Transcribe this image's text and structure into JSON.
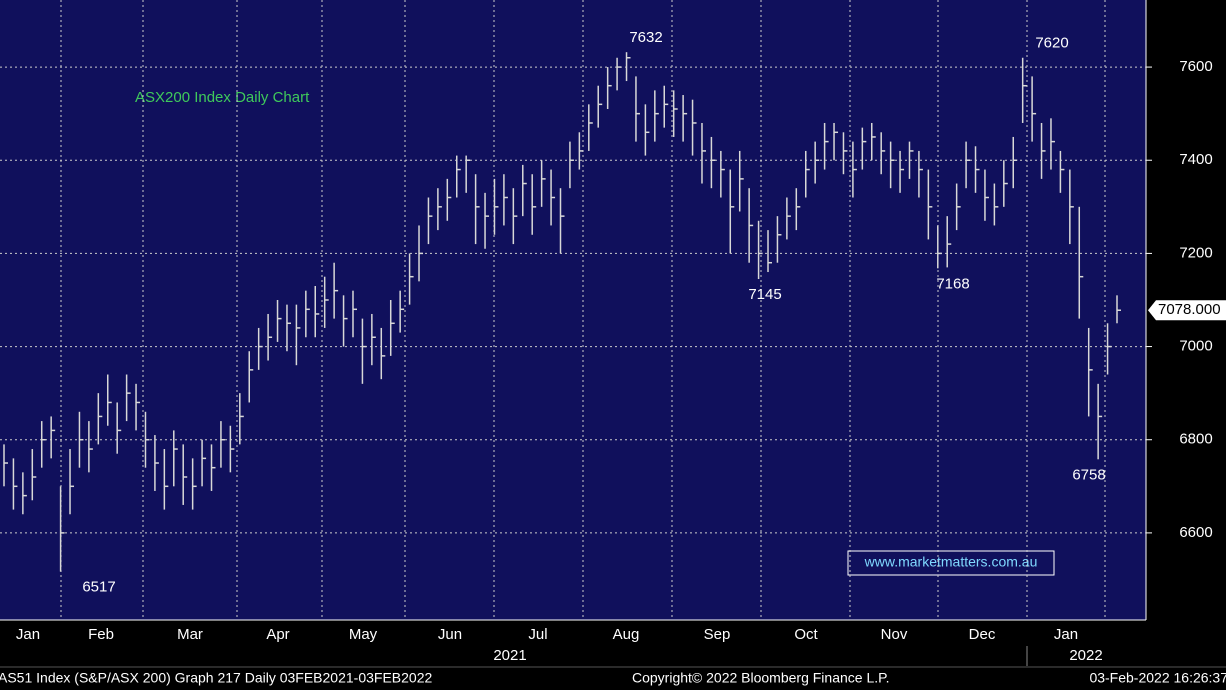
{
  "chart_data": {
    "type": "ohlc",
    "title": "ASX200 Index Daily Chart",
    "watermark": "www.marketmatters.com.au",
    "close": [
      6750,
      6700,
      6680,
      6720,
      6800,
      6820,
      6600,
      6700,
      6800,
      6780,
      6850,
      6880,
      6820,
      6900,
      6880,
      6800,
      6750,
      6700,
      6780,
      6720,
      6700,
      6760,
      6740,
      6800,
      6780,
      6850,
      6950,
      7000,
      7020,
      7060,
      7050,
      7040,
      7080,
      7070,
      7100,
      7120,
      7060,
      7080,
      7000,
      7020,
      6980,
      7050,
      7080,
      7150,
      7200,
      7280,
      7300,
      7320,
      7380,
      7400,
      7300,
      7280,
      7300,
      7320,
      7280,
      7350,
      7300,
      7360,
      7320,
      7280,
      7400,
      7420,
      7480,
      7520,
      7560,
      7600,
      7620,
      7500,
      7460,
      7500,
      7520,
      7510,
      7500,
      7480,
      7420,
      7400,
      7380,
      7300,
      7360,
      7260,
      7200,
      7180,
      7240,
      7280,
      7300,
      7380,
      7400,
      7440,
      7460,
      7420,
      7380,
      7440,
      7450,
      7420,
      7400,
      7380,
      7420,
      7380,
      7300,
      7200,
      7220,
      7300,
      7400,
      7380,
      7320,
      7300,
      7350,
      7400,
      7560,
      7500,
      7420,
      7440,
      7380,
      7300,
      7150,
      6950,
      6850,
      7000,
      7078
    ],
    "high": [
      6790,
      6760,
      6730,
      6780,
      6840,
      6850,
      6700,
      6780,
      6860,
      6840,
      6900,
      6940,
      6880,
      6940,
      6920,
      6860,
      6810,
      6780,
      6820,
      6790,
      6760,
      6800,
      6790,
      6840,
      6830,
      6900,
      6990,
      7040,
      7070,
      7100,
      7090,
      7090,
      7120,
      7130,
      7150,
      7180,
      7110,
      7120,
      7060,
      7070,
      7040,
      7100,
      7120,
      7200,
      7260,
      7320,
      7340,
      7360,
      7410,
      7410,
      7370,
      7330,
      7360,
      7370,
      7340,
      7390,
      7370,
      7400,
      7380,
      7340,
      7440,
      7460,
      7520,
      7560,
      7600,
      7620,
      7632,
      7580,
      7520,
      7550,
      7560,
      7550,
      7540,
      7530,
      7480,
      7450,
      7420,
      7380,
      7420,
      7340,
      7270,
      7250,
      7280,
      7320,
      7340,
      7420,
      7440,
      7480,
      7480,
      7460,
      7440,
      7470,
      7480,
      7460,
      7440,
      7420,
      7440,
      7420,
      7380,
      7260,
      7280,
      7350,
      7440,
      7430,
      7380,
      7350,
      7400,
      7450,
      7620,
      7580,
      7480,
      7490,
      7420,
      7380,
      7300,
      7040,
      6920,
      7050,
      7110
    ],
    "low": [
      6700,
      6650,
      6640,
      6670,
      6740,
      6760,
      6517,
      6640,
      6740,
      6730,
      6790,
      6830,
      6770,
      6840,
      6820,
      6740,
      6690,
      6650,
      6700,
      6660,
      6650,
      6700,
      6690,
      6740,
      6730,
      6790,
      6880,
      6950,
      6970,
      7010,
      6990,
      6960,
      7020,
      7020,
      7040,
      7060,
      7000,
      7020,
      6920,
      6960,
      6930,
      6980,
      7030,
      7090,
      7140,
      7220,
      7250,
      7270,
      7320,
      7330,
      7220,
      7210,
      7240,
      7260,
      7220,
      7280,
      7240,
      7300,
      7260,
      7200,
      7340,
      7380,
      7420,
      7470,
      7510,
      7550,
      7570,
      7440,
      7410,
      7440,
      7470,
      7450,
      7440,
      7410,
      7350,
      7340,
      7320,
      7200,
      7290,
      7180,
      7145,
      7160,
      7180,
      7230,
      7250,
      7320,
      7350,
      7380,
      7400,
      7370,
      7320,
      7380,
      7400,
      7370,
      7340,
      7330,
      7360,
      7320,
      7230,
      7168,
      7170,
      7250,
      7340,
      7330,
      7270,
      7260,
      7300,
      7340,
      7480,
      7440,
      7360,
      7380,
      7330,
      7220,
      7060,
      6850,
      6758,
      6940,
      7050
    ],
    "annotations": [
      7632,
      7145,
      7168,
      7620,
      6758,
      6517
    ],
    "last_price": {
      "value": 7078,
      "label": "7078.000"
    },
    "ylim": [
      6413,
      7744
    ],
    "yticks": [
      6600,
      6800,
      7000,
      7200,
      7400,
      7600
    ],
    "months": [
      "Jan",
      "Feb",
      "Mar",
      "Apr",
      "May",
      "Jun",
      "Jul",
      "Aug",
      "Sep",
      "Oct",
      "Nov",
      "Dec",
      "Jan"
    ],
    "years": [
      "2021",
      "2022"
    ],
    "color": "#d8d8d8",
    "grid": true
  },
  "footer": {
    "left": "AS51 Index (S&P/ASX 200) Graph 217  Daily 03FEB2021-03FEB2022",
    "center": "Copyright© 2022 Bloomberg Finance L.P.",
    "right": "03-Feb-2022 16:26:37"
  }
}
